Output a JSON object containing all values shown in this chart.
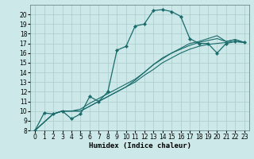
{
  "bg_color": "#cce8e8",
  "grid_color": "#aacccc",
  "line_color": "#1a6b6b",
  "marker_color": "#1a6b6b",
  "xlabel": "Humidex (Indice chaleur)",
  "xlim": [
    -0.5,
    23.5
  ],
  "ylim": [
    8,
    21
  ],
  "xticks": [
    0,
    1,
    2,
    3,
    4,
    5,
    6,
    7,
    8,
    9,
    10,
    11,
    12,
    13,
    14,
    15,
    16,
    17,
    18,
    19,
    20,
    21,
    22,
    23
  ],
  "yticks": [
    8,
    9,
    10,
    11,
    12,
    13,
    14,
    15,
    16,
    17,
    18,
    19,
    20
  ],
  "line1_x": [
    0,
    1,
    2,
    3,
    4,
    5,
    6,
    7,
    8,
    9,
    10,
    11,
    12,
    13,
    14,
    15,
    16,
    17,
    18,
    19,
    20,
    21,
    22,
    23
  ],
  "line1_y": [
    8.0,
    9.8,
    9.7,
    10.0,
    9.2,
    9.7,
    11.5,
    11.0,
    12.0,
    16.3,
    16.7,
    18.8,
    19.0,
    20.4,
    20.5,
    20.3,
    19.8,
    17.5,
    17.0,
    17.0,
    16.0,
    17.0,
    17.2,
    17.1
  ],
  "line2_x": [
    0,
    2,
    3,
    4,
    5,
    6,
    7,
    8,
    9,
    10,
    11,
    12,
    13,
    14,
    15,
    16,
    17,
    18,
    19,
    20,
    21,
    22,
    23
  ],
  "line2_y": [
    8.0,
    9.7,
    10.0,
    10.0,
    10.0,
    10.5,
    11.0,
    11.5,
    12.0,
    12.5,
    13.0,
    13.7,
    14.3,
    15.0,
    15.5,
    16.0,
    16.4,
    16.7,
    16.9,
    17.0,
    17.1,
    17.2,
    17.1
  ],
  "line3_x": [
    0,
    2,
    3,
    4,
    5,
    6,
    7,
    8,
    9,
    10,
    11,
    12,
    13,
    14,
    15,
    16,
    17,
    18,
    19,
    20,
    21,
    22,
    23
  ],
  "line3_y": [
    8.0,
    9.7,
    10.0,
    10.0,
    10.2,
    10.8,
    11.3,
    11.8,
    12.3,
    12.8,
    13.3,
    14.0,
    14.8,
    15.4,
    16.0,
    16.4,
    16.8,
    17.1,
    17.3,
    17.5,
    17.2,
    17.4,
    17.1
  ],
  "line4_x": [
    0,
    2,
    3,
    4,
    5,
    6,
    7,
    8,
    9,
    10,
    11,
    12,
    13,
    14,
    15,
    16,
    17,
    18,
    19,
    20,
    21,
    22,
    23
  ],
  "line4_y": [
    8.0,
    9.7,
    10.0,
    10.0,
    10.0,
    10.5,
    11.0,
    11.5,
    12.0,
    12.5,
    13.2,
    14.0,
    14.8,
    15.5,
    16.0,
    16.5,
    17.0,
    17.2,
    17.5,
    17.8,
    17.2,
    17.4,
    17.1
  ],
  "tick_fontsize": 5.5,
  "label_fontsize": 6.5
}
